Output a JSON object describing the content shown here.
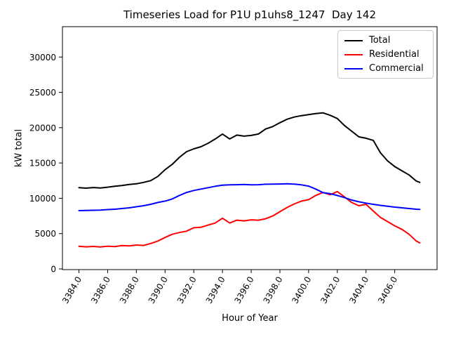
{
  "window": {
    "background": "#ffffff"
  },
  "chart_data": {
    "type": "line",
    "title": "Timeseries Load for P1U p1uhs8_1247  Day 142",
    "xlabel": "Hour of Year",
    "ylabel": "kW total",
    "grid": false,
    "legend_position": "upper right",
    "xlim": [
      3382.85,
      3408.95
    ],
    "ylim": [
      -100,
      34300
    ],
    "x_tick_values": [
      3384,
      3386,
      3388,
      3390,
      3392,
      3394,
      3396,
      3398,
      3400,
      3402,
      3404,
      3406
    ],
    "x_tick_labels": [
      "3384.0",
      "3386.0",
      "3388.0",
      "3390.0",
      "3392.0",
      "3394.0",
      "3396.0",
      "3398.0",
      "3400.0",
      "3402.0",
      "3404.0",
      "3406.0"
    ],
    "y_tick_values": [
      0,
      5000,
      10000,
      15000,
      20000,
      25000,
      30000
    ],
    "y_tick_labels": [
      "0",
      "5000",
      "10000",
      "15000",
      "20000",
      "25000",
      "30000"
    ],
    "x": [
      3384.0,
      3384.5,
      3385.0,
      3385.5,
      3386.0,
      3386.5,
      3387.0,
      3387.5,
      3388.0,
      3388.5,
      3389.0,
      3389.5,
      3390.0,
      3390.5,
      3391.0,
      3391.5,
      3392.0,
      3392.5,
      3393.0,
      3393.5,
      3394.0,
      3394.5,
      3395.0,
      3395.5,
      3396.0,
      3396.5,
      3397.0,
      3397.5,
      3398.0,
      3398.5,
      3399.0,
      3399.5,
      3400.0,
      3400.5,
      3401.0,
      3401.5,
      3402.0,
      3402.5,
      3403.0,
      3403.5,
      3404.0,
      3404.5,
      3405.0,
      3405.5,
      3406.0,
      3406.5,
      3407.0,
      3407.5,
      3407.75
    ],
    "series": [
      {
        "name": "Total",
        "color": "#000000",
        "values": [
          11500,
          11430,
          11520,
          11450,
          11570,
          11700,
          11800,
          11950,
          12050,
          12250,
          12500,
          13100,
          14050,
          14800,
          15800,
          16600,
          17000,
          17300,
          17800,
          18400,
          19100,
          18400,
          18950,
          18800,
          18900,
          19100,
          19800,
          20150,
          20700,
          21200,
          21500,
          21700,
          21850,
          22000,
          22100,
          21750,
          21300,
          20300,
          19500,
          18700,
          18500,
          18200,
          16450,
          15300,
          14500,
          13900,
          13300,
          12450,
          12250
        ]
      },
      {
        "name": "Residential",
        "color": "#ff0000",
        "values": [
          3200,
          3120,
          3180,
          3100,
          3220,
          3150,
          3300,
          3260,
          3380,
          3320,
          3600,
          3950,
          4450,
          4900,
          5150,
          5350,
          5830,
          5900,
          6200,
          6500,
          7180,
          6500,
          6900,
          6800,
          6950,
          6900,
          7100,
          7500,
          8100,
          8700,
          9200,
          9600,
          9800,
          10400,
          10830,
          10500,
          10960,
          10200,
          9400,
          8950,
          9150,
          8200,
          7300,
          6700,
          6100,
          5600,
          4900,
          3950,
          3680
        ]
      },
      {
        "name": "Commercial",
        "color": "#0000ff",
        "values": [
          8250,
          8270,
          8300,
          8320,
          8400,
          8450,
          8550,
          8650,
          8800,
          8950,
          9150,
          9400,
          9600,
          9900,
          10400,
          10830,
          11100,
          11300,
          11500,
          11700,
          11850,
          11900,
          11920,
          11950,
          11900,
          11920,
          11990,
          12000,
          12020,
          12050,
          12000,
          11900,
          11720,
          11300,
          10800,
          10650,
          10400,
          10100,
          9750,
          9500,
          9320,
          9150,
          9000,
          8880,
          8750,
          8650,
          8550,
          8450,
          8430
        ]
      }
    ]
  }
}
